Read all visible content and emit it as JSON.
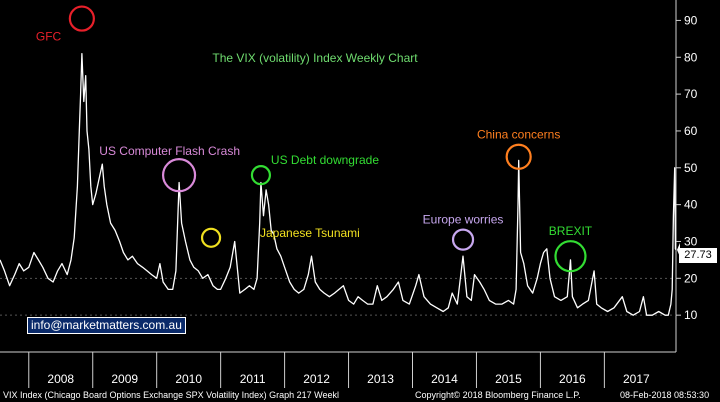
{
  "chart_data": {
    "type": "line",
    "title": "The VIX (volatility) Index Weekly Chart",
    "xlabel": "",
    "ylabel": "",
    "ylim": [
      0,
      95
    ],
    "yticks": [
      10,
      20,
      30,
      40,
      50,
      60,
      70,
      80,
      90
    ],
    "x_range": [
      2007.55,
      2018.12
    ],
    "x_tick_labels": [
      "2008",
      "2009",
      "2010",
      "2011",
      "2012",
      "2013",
      "2014",
      "2015",
      "2016",
      "2017"
    ],
    "grid": false,
    "last_value": "27.73",
    "series": [
      {
        "name": "",
        "color": "#ffffff",
        "points": [
          [
            2007.55,
            25
          ],
          [
            2007.62,
            22
          ],
          [
            2007.7,
            18
          ],
          [
            2007.78,
            21
          ],
          [
            2007.85,
            24
          ],
          [
            2007.92,
            22
          ],
          [
            2008.0,
            23
          ],
          [
            2008.08,
            27
          ],
          [
            2008.15,
            25
          ],
          [
            2008.22,
            23
          ],
          [
            2008.3,
            20
          ],
          [
            2008.38,
            19
          ],
          [
            2008.45,
            22
          ],
          [
            2008.52,
            24
          ],
          [
            2008.6,
            21
          ],
          [
            2008.66,
            25
          ],
          [
            2008.71,
            31
          ],
          [
            2008.76,
            45
          ],
          [
            2008.79,
            60
          ],
          [
            2008.81,
            70
          ],
          [
            2008.83,
            81
          ],
          [
            2008.86,
            68
          ],
          [
            2008.89,
            75
          ],
          [
            2008.91,
            60
          ],
          [
            2008.94,
            55
          ],
          [
            2008.97,
            45
          ],
          [
            2009.0,
            40
          ],
          [
            2009.05,
            43
          ],
          [
            2009.1,
            47
          ],
          [
            2009.15,
            51
          ],
          [
            2009.18,
            45
          ],
          [
            2009.22,
            40
          ],
          [
            2009.28,
            35
          ],
          [
            2009.35,
            33
          ],
          [
            2009.42,
            30
          ],
          [
            2009.48,
            27
          ],
          [
            2009.55,
            25
          ],
          [
            2009.62,
            26
          ],
          [
            2009.7,
            24
          ],
          [
            2009.78,
            23
          ],
          [
            2009.85,
            22
          ],
          [
            2009.92,
            21
          ],
          [
            2010.0,
            20
          ],
          [
            2010.05,
            24
          ],
          [
            2010.1,
            19
          ],
          [
            2010.18,
            17
          ],
          [
            2010.25,
            17
          ],
          [
            2010.3,
            22
          ],
          [
            2010.35,
            46
          ],
          [
            2010.39,
            35
          ],
          [
            2010.45,
            30
          ],
          [
            2010.52,
            25
          ],
          [
            2010.58,
            23
          ],
          [
            2010.65,
            22
          ],
          [
            2010.72,
            20
          ],
          [
            2010.8,
            21
          ],
          [
            2010.88,
            18
          ],
          [
            2010.95,
            17
          ],
          [
            2011.0,
            17
          ],
          [
            2011.08,
            20
          ],
          [
            2011.15,
            23
          ],
          [
            2011.22,
            30
          ],
          [
            2011.3,
            16
          ],
          [
            2011.38,
            17
          ],
          [
            2011.45,
            18
          ],
          [
            2011.52,
            17
          ],
          [
            2011.57,
            20
          ],
          [
            2011.61,
            35
          ],
          [
            2011.63,
            46
          ],
          [
            2011.67,
            37
          ],
          [
            2011.71,
            44
          ],
          [
            2011.75,
            40
          ],
          [
            2011.79,
            33
          ],
          [
            2011.83,
            32
          ],
          [
            2011.88,
            28
          ],
          [
            2011.94,
            26
          ],
          [
            2012.0,
            23
          ],
          [
            2012.08,
            19
          ],
          [
            2012.15,
            17
          ],
          [
            2012.22,
            16
          ],
          [
            2012.3,
            17
          ],
          [
            2012.37,
            21
          ],
          [
            2012.42,
            26
          ],
          [
            2012.48,
            19
          ],
          [
            2012.55,
            17
          ],
          [
            2012.62,
            16
          ],
          [
            2012.7,
            15
          ],
          [
            2012.78,
            16
          ],
          [
            2012.85,
            17
          ],
          [
            2012.92,
            18
          ],
          [
            2013.0,
            14
          ],
          [
            2013.08,
            13
          ],
          [
            2013.15,
            15
          ],
          [
            2013.22,
            14
          ],
          [
            2013.3,
            13
          ],
          [
            2013.38,
            13
          ],
          [
            2013.45,
            18
          ],
          [
            2013.52,
            14
          ],
          [
            2013.6,
            15
          ],
          [
            2013.7,
            17
          ],
          [
            2013.78,
            19
          ],
          [
            2013.85,
            14
          ],
          [
            2013.95,
            13
          ],
          [
            2014.05,
            18
          ],
          [
            2014.1,
            21
          ],
          [
            2014.18,
            15
          ],
          [
            2014.28,
            13
          ],
          [
            2014.38,
            12
          ],
          [
            2014.48,
            11
          ],
          [
            2014.56,
            12
          ],
          [
            2014.62,
            16
          ],
          [
            2014.7,
            13
          ],
          [
            2014.79,
            26
          ],
          [
            2014.85,
            15
          ],
          [
            2014.92,
            14
          ],
          [
            2014.97,
            21
          ],
          [
            2015.05,
            19
          ],
          [
            2015.12,
            17
          ],
          [
            2015.2,
            14
          ],
          [
            2015.3,
            13
          ],
          [
            2015.4,
            13
          ],
          [
            2015.5,
            14
          ],
          [
            2015.58,
            13
          ],
          [
            2015.62,
            17
          ],
          [
            2015.65,
            40
          ],
          [
            2015.66,
            52
          ],
          [
            2015.69,
            27
          ],
          [
            2015.74,
            24
          ],
          [
            2015.8,
            18
          ],
          [
            2015.88,
            16
          ],
          [
            2015.95,
            20
          ],
          [
            2016.0,
            24
          ],
          [
            2016.05,
            27
          ],
          [
            2016.1,
            28
          ],
          [
            2016.15,
            20
          ],
          [
            2016.22,
            15
          ],
          [
            2016.32,
            14
          ],
          [
            2016.42,
            15
          ],
          [
            2016.47,
            25
          ],
          [
            2016.5,
            15
          ],
          [
            2016.58,
            12
          ],
          [
            2016.66,
            13
          ],
          [
            2016.75,
            14
          ],
          [
            2016.84,
            22
          ],
          [
            2016.88,
            13
          ],
          [
            2016.95,
            12
          ],
          [
            2017.05,
            11
          ],
          [
            2017.15,
            12
          ],
          [
            2017.28,
            15
          ],
          [
            2017.35,
            11
          ],
          [
            2017.45,
            10
          ],
          [
            2017.55,
            11
          ],
          [
            2017.61,
            15
          ],
          [
            2017.66,
            10
          ],
          [
            2017.75,
            10
          ],
          [
            2017.85,
            11
          ],
          [
            2017.95,
            10
          ],
          [
            2018.0,
            10
          ],
          [
            2018.04,
            13
          ],
          [
            2018.06,
            17
          ],
          [
            2018.08,
            37
          ],
          [
            2018.1,
            50
          ],
          [
            2018.11,
            28
          ],
          [
            2018.12,
            27.73
          ]
        ]
      }
    ],
    "annotations": [
      {
        "label": "GFC",
        "color": "#e8202a",
        "x": 2008.83,
        "y": 90.5,
        "text_side": "left"
      },
      {
        "label": "US Computer Flash Crash",
        "color": "#d98ad9",
        "x": 2010.35,
        "y": 48,
        "text_side": "above-left"
      },
      {
        "label": "",
        "color": "#f0e020",
        "x": 2010.85,
        "y": 31
      },
      {
        "label": "Japanese Tsunami",
        "color": "#f0e020",
        "x": 2011.2,
        "y": 30.5,
        "text_side": "right"
      },
      {
        "label": "US Debt downgrade",
        "color": "#33dd33",
        "x": 2011.63,
        "y": 48,
        "text_side": "right"
      },
      {
        "label": "Europe worries",
        "color": "#c8a8f0",
        "x": 2014.79,
        "y": 30.5,
        "text_side": "above"
      },
      {
        "label": "China concerns",
        "color": "#ff7f1f",
        "x": 2015.66,
        "y": 53,
        "text_side": "above"
      },
      {
        "label": "BREXIT",
        "color": "#33dd33",
        "x": 2016.47,
        "y": 26,
        "text_side": "above"
      }
    ]
  },
  "email_box": "info@marketmatters.com.au",
  "footer": {
    "left": "VIX Index (Chicago Board Options Exchange SPX Volatility Index) Graph 217  Weekl",
    "middle": "Copyright© 2018 Bloomberg Finance L.P.",
    "right": "08-Feb-2018 08:53:30"
  }
}
